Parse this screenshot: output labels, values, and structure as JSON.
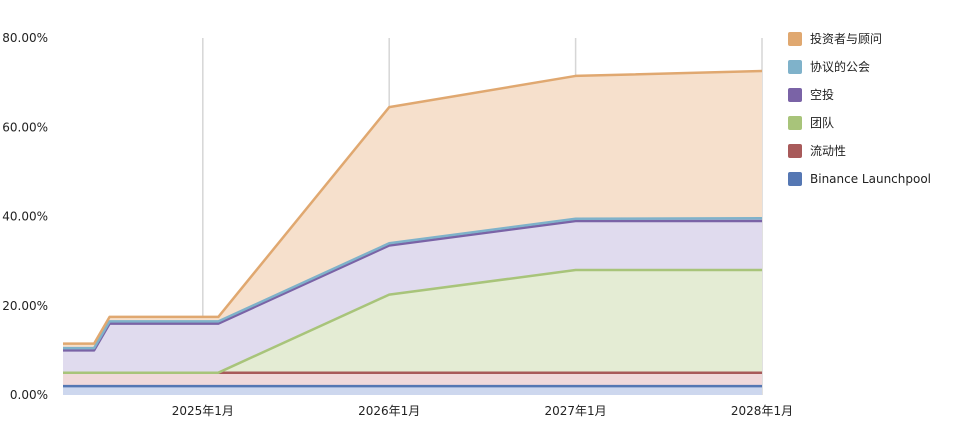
{
  "chart_data": {
    "type": "area",
    "stacked": true,
    "x_ticks": [
      "2025年1月",
      "2026年1月",
      "2027年1月",
      "2028年1月"
    ],
    "y_ticks": [
      "0.00%",
      "20.00%",
      "40.00%",
      "60.00%",
      "80.00%"
    ],
    "ylim": [
      0,
      80
    ],
    "x_range": [
      "2024-04",
      "2028-01"
    ],
    "grid": "vertical",
    "legend_position": "right",
    "x": [
      "2024-04",
      "2024-06",
      "2024-07",
      "2025-01",
      "2025-02",
      "2026-01",
      "2027-01",
      "2028-01"
    ],
    "series": [
      {
        "name": "Binance Launchpool",
        "color": "#5577b3",
        "fill": "#cdd7ee",
        "values": [
          2,
          2,
          2,
          2,
          2,
          2,
          2,
          2
        ]
      },
      {
        "name": "流动性",
        "color": "#a85a5a",
        "fill": "#f0d9db",
        "values": [
          3,
          3,
          3,
          3,
          3,
          3,
          3,
          3
        ]
      },
      {
        "name": "团队",
        "color": "#a8c47a",
        "fill": "#e4ecd4",
        "values": [
          0,
          0,
          0,
          0,
          0,
          17.5,
          23,
          23
        ]
      },
      {
        "name": "空投",
        "color": "#7a63a6",
        "fill": "#e0dbee",
        "values": [
          5,
          5,
          11,
          11,
          11,
          11,
          11,
          11
        ]
      },
      {
        "name": "协议的公会",
        "color": "#7fb2ca",
        "fill": "#dbe8ee",
        "values": [
          0.5,
          0.5,
          0.5,
          0.5,
          0.5,
          0.5,
          0.5,
          0.6
        ]
      },
      {
        "name": "投资者与顾问",
        "color": "#e0a870",
        "fill": "#f6e0cc",
        "values": [
          1,
          1,
          1,
          1,
          1,
          30.5,
          32,
          33
        ]
      }
    ]
  }
}
